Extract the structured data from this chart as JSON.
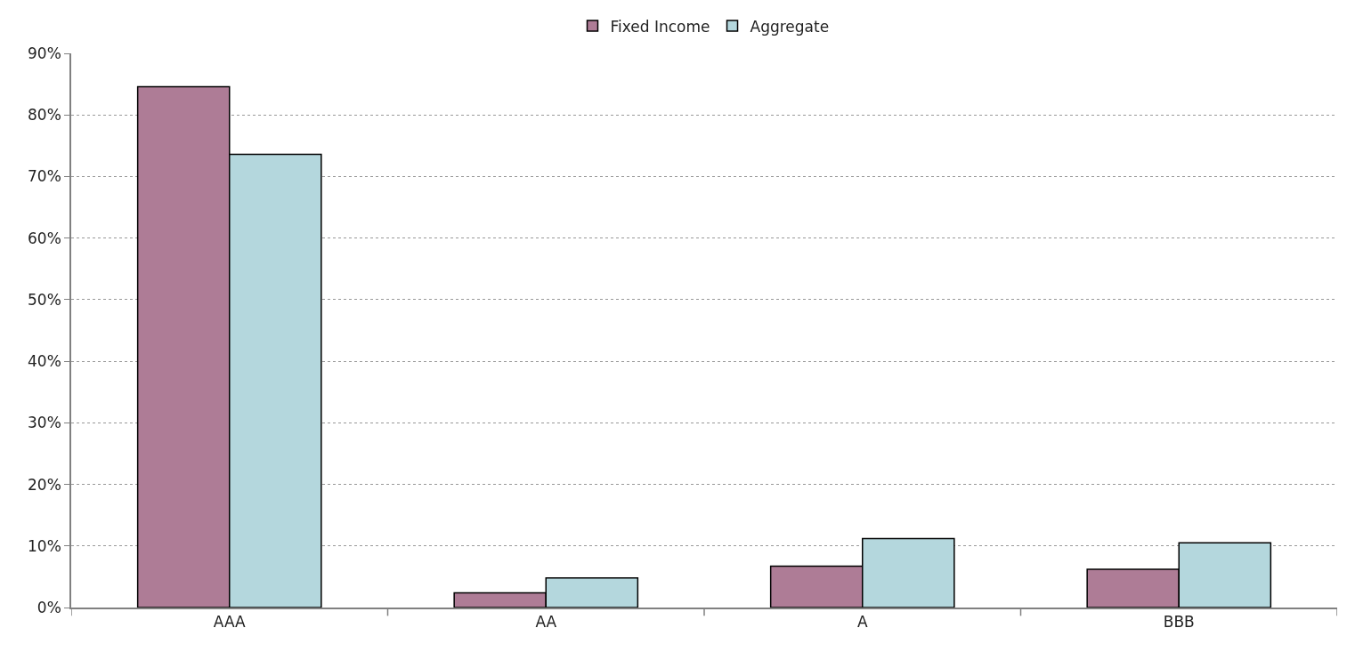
{
  "chart_data": {
    "type": "bar",
    "categories": [
      "AAA",
      "AA",
      "A",
      "BBB"
    ],
    "series": [
      {
        "name": "Fixed Income",
        "color": "#ae7c96",
        "values": [
          84.6,
          2.4,
          6.7,
          6.2
        ]
      },
      {
        "name": "Aggregate",
        "color": "#b4d7dd",
        "values": [
          73.6,
          4.8,
          11.2,
          10.5
        ]
      }
    ],
    "ylim": [
      0,
      90
    ],
    "yticks": [
      {
        "value": 0,
        "label": "0%"
      },
      {
        "value": 10,
        "label": "10%"
      },
      {
        "value": 20,
        "label": "20%"
      },
      {
        "value": 30,
        "label": "30%"
      },
      {
        "value": 40,
        "label": "40%"
      },
      {
        "value": 50,
        "label": "50%"
      },
      {
        "value": 60,
        "label": "60%"
      },
      {
        "value": 70,
        "label": "70%"
      },
      {
        "value": 80,
        "label": "80%"
      },
      {
        "value": 90,
        "label": "90%"
      }
    ],
    "grid": "y",
    "legend": "top"
  }
}
